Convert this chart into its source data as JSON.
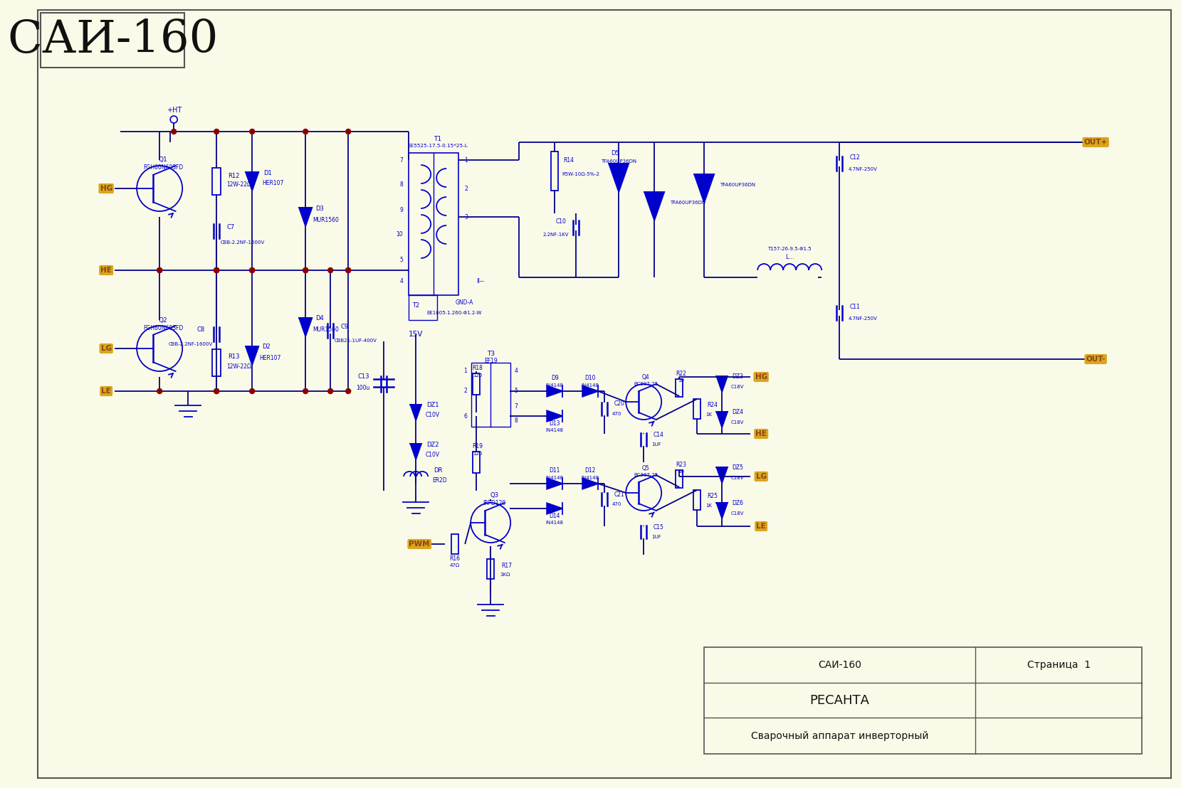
{
  "bg_color": "#FAFAE8",
  "wire_color": "#00008B",
  "node_color": "#8B0000",
  "component_color": "#0000CD",
  "tag_bg": "#DAA520",
  "tag_text": "#8B4513",
  "title_text": "САИ-160",
  "title_fontsize": 46,
  "tb_row1": "Сварочный аппарат инверторный",
  "tb_row2": "РЕСАНТА",
  "tb_row3_left": "САИ-160",
  "tb_row3_right": "Страница  1"
}
